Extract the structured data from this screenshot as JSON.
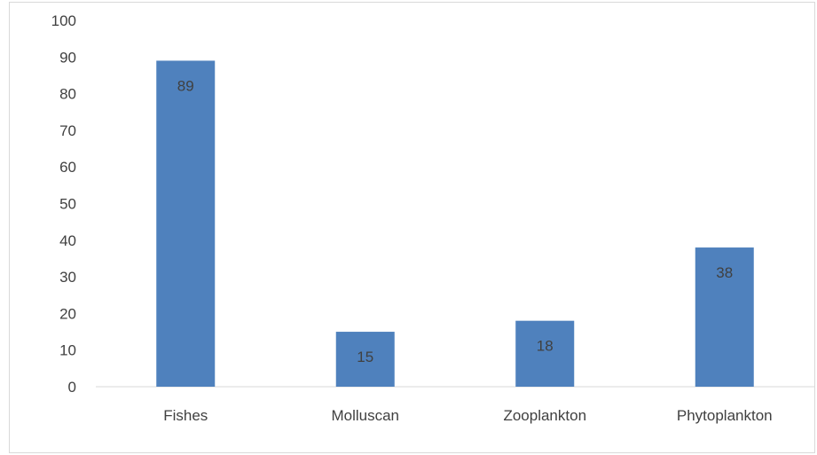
{
  "chart_data": {
    "type": "bar",
    "categories": [
      "Fishes",
      "Molluscan",
      "Zooplankton",
      "Phytoplankton"
    ],
    "values": [
      89,
      15,
      18,
      38
    ],
    "data_labels": [
      "89",
      "15",
      "18",
      "38"
    ],
    "ylim": [
      0,
      100
    ],
    "yticks": [
      "0",
      "10",
      "20",
      "30",
      "40",
      "50",
      "60",
      "70",
      "80",
      "90",
      "100"
    ],
    "grid": false,
    "legend": "none",
    "bar_color": "#4f81bd",
    "axis_color": "#d9d9d9",
    "text_color": "#404040"
  }
}
